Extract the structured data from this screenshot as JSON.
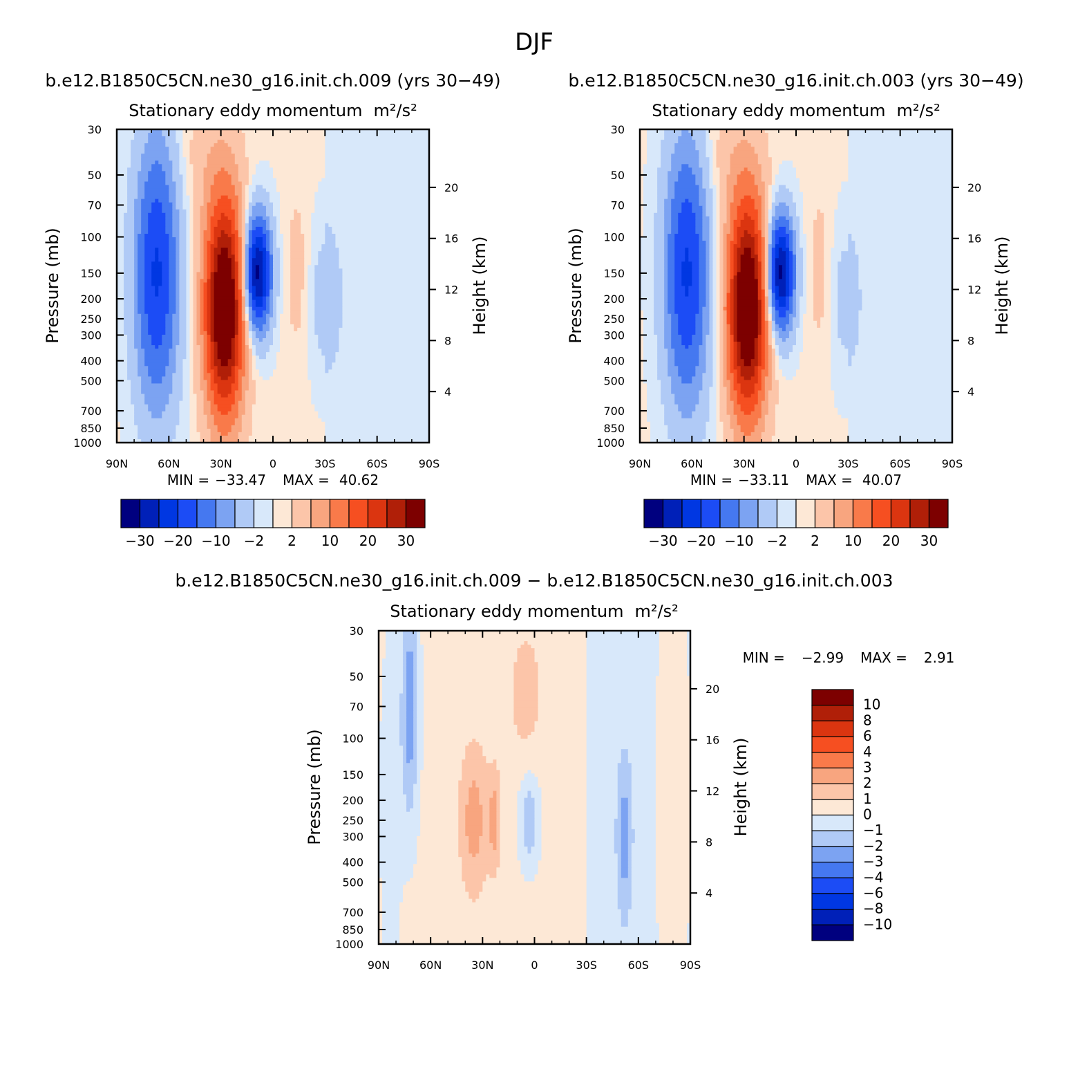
{
  "figure": {
    "title": "DJF",
    "colors": {
      "full_levels": [
        "#00007f",
        "#0020b8",
        "#0037e2",
        "#1c4cf5",
        "#4578f0",
        "#7ca3f2",
        "#b0caf6",
        "#d8e8fa",
        "#fde8d6",
        "#fcc5a9",
        "#f8a57f",
        "#f97a4a",
        "#f64f21",
        "#db3510",
        "#b01f08",
        "#7d0000"
      ],
      "diff_levels": [
        "#00007f",
        "#0020b8",
        "#0037e2",
        "#1c4cf5",
        "#4578f0",
        "#7ca3f2",
        "#b0caf6",
        "#d8e8fa",
        "#fde8d6",
        "#fcc5a9",
        "#f8a57f",
        "#f97a4a",
        "#f64f21",
        "#db3510",
        "#b01f08",
        "#7d0000"
      ]
    }
  },
  "chart_data": [
    {
      "type": "heatmap",
      "panel": "top-left",
      "case_title": "b.e12.B1850C5CN.ne30_g16.init.ch.009 (yrs 30−49)",
      "title": "Stationary eddy momentum",
      "units": "m²/s²",
      "xlabel": "",
      "ylabel": "Pressure (mb)",
      "ylabel_right": "Height (km)",
      "x_ticks": [
        "90N",
        "60N",
        "30N",
        "0",
        "30S",
        "60S",
        "90S"
      ],
      "x_values": [
        90,
        60,
        30,
        0,
        -30,
        -60,
        -90
      ],
      "y_ticks": [
        30,
        50,
        70,
        100,
        150,
        200,
        250,
        300,
        400,
        500,
        700,
        850,
        1000
      ],
      "y_scale": "log",
      "y_range": [
        1000,
        30
      ],
      "height_ticks": [
        20,
        16,
        12,
        8,
        4
      ],
      "min_label": "MIN =",
      "min_value": "−33.47",
      "max_label": "MAX =",
      "max_value": "40.62",
      "colorbar_labels": [
        "−30",
        "−20",
        "−10",
        "−2",
        "2",
        "10",
        "20",
        "30"
      ],
      "fields": [
        {
          "lat": 67,
          "p": 150,
          "amp": -21,
          "slat": 9,
          "sp": 1.05
        },
        {
          "lat": 28,
          "p": 220,
          "amp": 40,
          "slat": 8,
          "sp": 0.85
        },
        {
          "lat": 9,
          "p": 150,
          "amp": -33,
          "slat": 5.5,
          "sp": 0.45
        },
        {
          "lat": -14,
          "p": 150,
          "amp": 3,
          "slat": 5,
          "sp": 0.7
        },
        {
          "lat": -30,
          "p": 200,
          "amp": -4,
          "slat": 7,
          "sp": 0.6
        },
        {
          "lat": 38,
          "p": 40,
          "amp": 3,
          "slat": 12,
          "sp": 0.5
        }
      ]
    },
    {
      "type": "heatmap",
      "panel": "top-right",
      "case_title": "b.e12.B1850C5CN.ne30_g16.init.ch.003 (yrs 30−49)",
      "title": "Stationary eddy momentum",
      "units": "m²/s²",
      "xlabel": "",
      "ylabel": "Pressure (mb)",
      "ylabel_right": "Height (km)",
      "x_ticks": [
        "90N",
        "60N",
        "30N",
        "0",
        "30S",
        "60S",
        "90S"
      ],
      "x_values": [
        90,
        60,
        30,
        0,
        -30,
        -60,
        -90
      ],
      "y_ticks": [
        30,
        50,
        70,
        100,
        150,
        200,
        250,
        300,
        400,
        500,
        700,
        850,
        1000
      ],
      "y_scale": "log",
      "y_range": [
        1000,
        30
      ],
      "height_ticks": [
        20,
        16,
        12,
        8,
        4
      ],
      "min_label": "MIN =",
      "min_value": "−33.11",
      "max_label": "MAX =",
      "max_value": "40.07",
      "colorbar_labels": [
        "−30",
        "−20",
        "−10",
        "−2",
        "2",
        "10",
        "20",
        "30"
      ],
      "fields": [
        {
          "lat": 63,
          "p": 150,
          "amp": -21,
          "slat": 9,
          "sp": 1.05
        },
        {
          "lat": 28,
          "p": 220,
          "amp": 40,
          "slat": 8,
          "sp": 0.85
        },
        {
          "lat": 9,
          "p": 150,
          "amp": -33,
          "slat": 5.5,
          "sp": 0.45
        },
        {
          "lat": -14,
          "p": 150,
          "amp": 3,
          "slat": 5,
          "sp": 0.7
        },
        {
          "lat": -28,
          "p": 200,
          "amp": -3.5,
          "slat": 7,
          "sp": 0.6
        },
        {
          "lat": 38,
          "p": 40,
          "amp": 3,
          "slat": 12,
          "sp": 0.5
        }
      ]
    },
    {
      "type": "heatmap",
      "panel": "bottom",
      "case_title": "b.e12.B1850C5CN.ne30_g16.init.ch.009 − b.e12.B1850C5CN.ne30_g16.init.ch.003",
      "title": "Stationary eddy momentum",
      "units": "m²/s²",
      "xlabel": "",
      "ylabel": "Pressure (mb)",
      "ylabel_right": "Height (km)",
      "x_ticks": [
        "90N",
        "60N",
        "30N",
        "0",
        "30S",
        "60S",
        "90S"
      ],
      "x_values": [
        90,
        60,
        30,
        0,
        -30,
        -60,
        -90
      ],
      "y_ticks": [
        30,
        50,
        70,
        100,
        150,
        200,
        250,
        300,
        400,
        500,
        700,
        850,
        1000
      ],
      "y_scale": "log",
      "y_range": [
        1000,
        30
      ],
      "height_ticks": [
        20,
        16,
        12,
        8,
        4
      ],
      "min_label": "MIN =",
      "min_value": "−2.99",
      "max_label": "MAX =",
      "max_value": "2.91",
      "colorbar_labels": [
        "10",
        "8",
        "6",
        "4",
        "3",
        "2",
        "1",
        "0",
        "−1",
        "−2",
        "−3",
        "−4",
        "−6",
        "−8",
        "−10"
      ],
      "fields": [
        {
          "lat": 72,
          "p": 70,
          "amp": -3,
          "slat": 3.5,
          "sp": 0.9
        },
        {
          "lat": 35,
          "p": 250,
          "amp": 2.2,
          "slat": 6,
          "sp": 0.6
        },
        {
          "lat": 23,
          "p": 250,
          "amp": 2,
          "slat": 2.5,
          "sp": 0.4
        },
        {
          "lat": 3,
          "p": 250,
          "amp": -2.2,
          "slat": 4,
          "sp": 0.35
        },
        {
          "lat": -52,
          "p": 300,
          "amp": -2.1,
          "slat": 3,
          "sp": 0.6
        },
        {
          "lat": -80,
          "p": 200,
          "amp": 1.2,
          "slat": 8,
          "sp": 2.0
        },
        {
          "lat": 83,
          "p": 200,
          "amp": -1.2,
          "slat": 4,
          "sp": 1.2
        },
        {
          "lat": 5,
          "p": 60,
          "amp": 1.1,
          "slat": 8,
          "sp": 0.6
        }
      ]
    }
  ]
}
